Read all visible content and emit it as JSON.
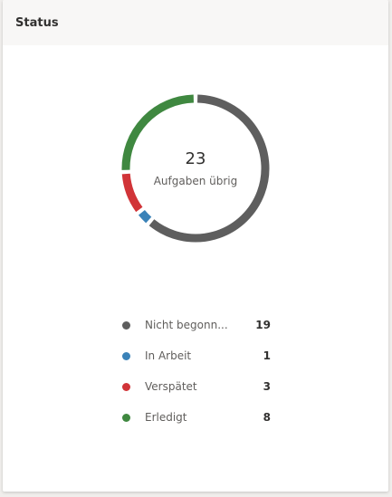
{
  "card": {
    "title": "Status"
  },
  "chart_data": {
    "type": "pie",
    "categories": [
      "Nicht begonn...",
      "In Arbeit",
      "Verspätet",
      "Erledigt"
    ],
    "values": [
      19,
      1,
      3,
      8
    ],
    "colors": [
      "#5e5e5e",
      "#3a82b8",
      "#d13438",
      "#3f8840"
    ],
    "center_value": "23",
    "center_label": "Aufgaben übrig",
    "legend_placement": "bottom"
  }
}
